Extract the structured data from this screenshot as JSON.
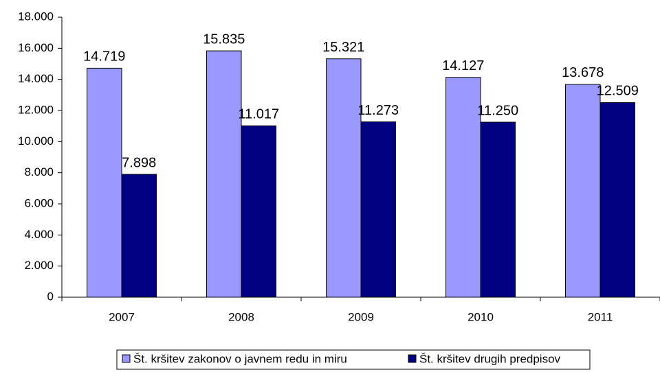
{
  "chart_data": {
    "type": "bar",
    "categories": [
      "2007",
      "2008",
      "2009",
      "2010",
      "2011"
    ],
    "series": [
      {
        "name": "Št. kršitev zakonov o javnem redu in miru",
        "color": "#9999ff",
        "values": [
          14719,
          15835,
          15321,
          14127,
          13678
        ],
        "value_labels": [
          "14.719",
          "15.835",
          "15.321",
          "14.127",
          "13.678"
        ]
      },
      {
        "name": "Št. kršitev drugih predpisov",
        "color": "#000080",
        "values": [
          7898,
          11017,
          11273,
          11250,
          12509
        ],
        "value_labels": [
          "7.898",
          "11.017",
          "11.273",
          "11.250",
          "12.509"
        ]
      }
    ],
    "ylim": [
      0,
      18000
    ],
    "yticks": [
      0,
      {
        "value": 2000,
        "label": "2.000"
      },
      {
        "value": 4000,
        "label": "4.000"
      },
      {
        "value": 6000,
        "label": "6.000"
      },
      {
        "value": 8000,
        "label": "8.000"
      },
      {
        "value": 10000,
        "label": "10.000"
      },
      {
        "value": 12000,
        "label": "12.000"
      },
      {
        "value": 14000,
        "label": "14.000"
      },
      {
        "value": 16000,
        "label": "16.000"
      },
      {
        "value": 18000,
        "label": "18.000"
      }
    ],
    "grid": false,
    "legend": "bottom"
  }
}
